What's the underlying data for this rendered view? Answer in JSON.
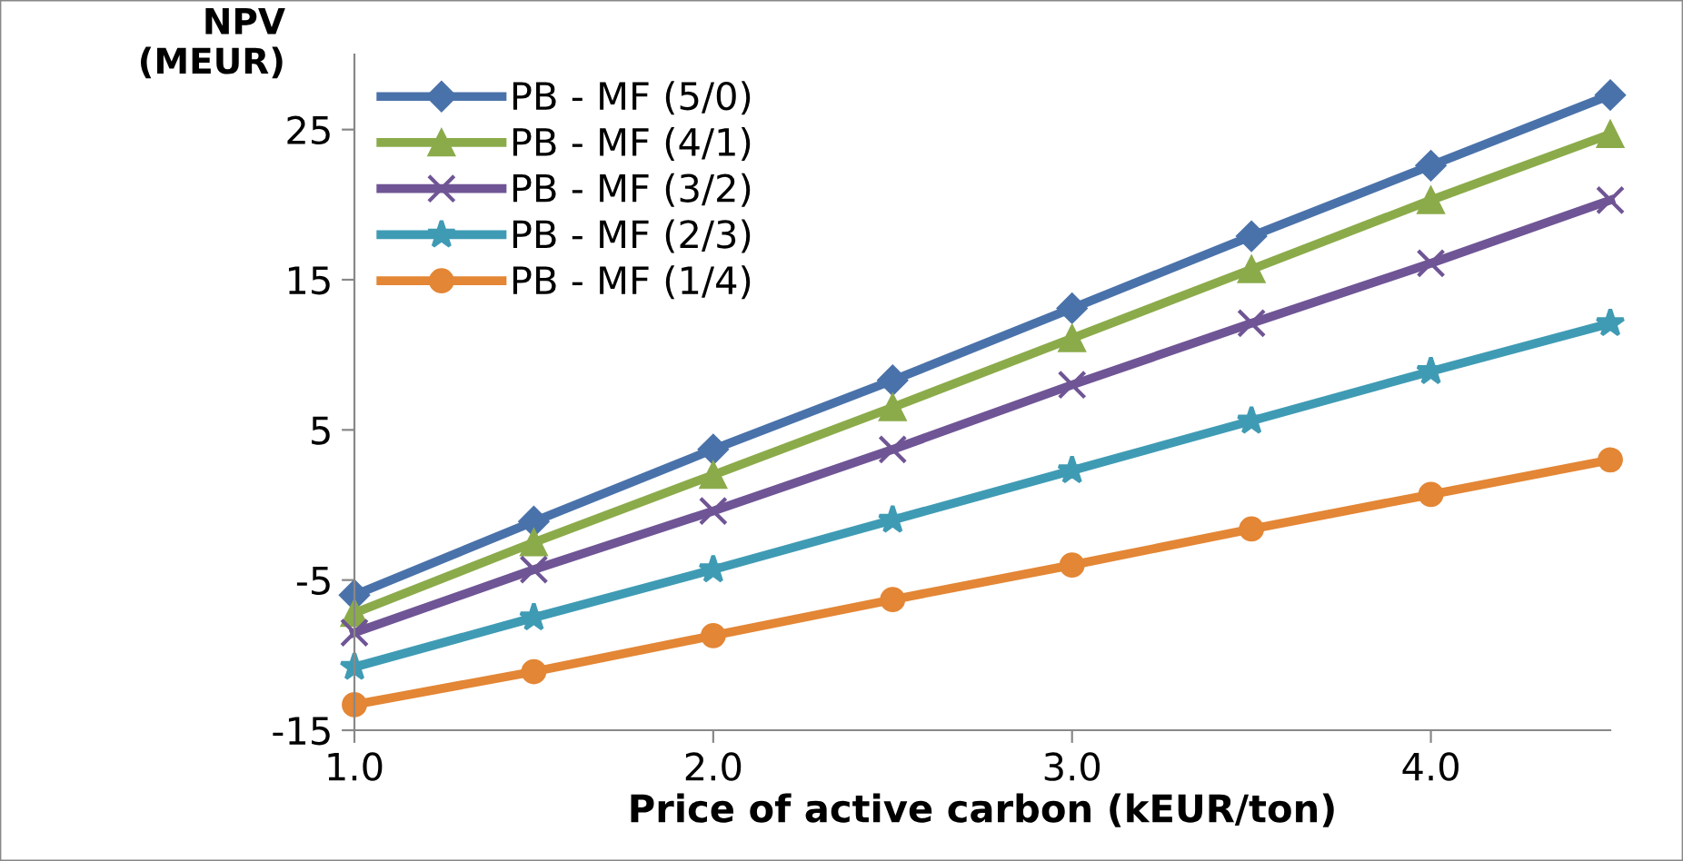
{
  "chart_data": {
    "type": "line",
    "xlabel": "Price of active carbon (kEUR/ton)",
    "ylabel": "NPV\n(MEUR)",
    "x": [
      1.0,
      1.5,
      2.0,
      2.5,
      3.0,
      3.5,
      4.0,
      4.5
    ],
    "xlim": [
      1.0,
      4.5
    ],
    "xticks": [
      {
        "value": 1.0,
        "label": "1.0"
      },
      {
        "value": 2.0,
        "label": "2.0"
      },
      {
        "value": 3.0,
        "label": "3.0"
      },
      {
        "value": 4.0,
        "label": "4.0"
      }
    ],
    "ylim": [
      -15,
      30
    ],
    "yticks": [
      -15,
      -5,
      5,
      15,
      25
    ],
    "grid": false,
    "legend": "top left",
    "series": [
      {
        "name": "PB - MF (5/0)",
        "color": "#4a72aa",
        "marker": "diamond",
        "values": [
          -6.0,
          -1.1,
          3.7,
          8.3,
          13.1,
          17.9,
          22.6,
          27.3
        ]
      },
      {
        "name": "PB - MF (4/1)",
        "color": "#8bab4a",
        "marker": "triangle",
        "values": [
          -7.2,
          -2.5,
          2.0,
          6.5,
          11.1,
          15.7,
          20.3,
          24.7
        ]
      },
      {
        "name": "PB - MF (3/2)",
        "color": "#6f5595",
        "marker": "cross",
        "values": [
          -8.5,
          -4.3,
          -0.4,
          3.7,
          8.0,
          12.1,
          16.1,
          20.3
        ]
      },
      {
        "name": "PB - MF (2/3)",
        "color": "#3f9bb4",
        "marker": "star",
        "values": [
          -10.8,
          -7.5,
          -4.3,
          -1.0,
          2.3,
          5.6,
          8.9,
          12.1
        ]
      },
      {
        "name": "PB - MF (1/4)",
        "color": "#e38635",
        "marker": "circle",
        "values": [
          -13.3,
          -11.1,
          -8.7,
          -6.3,
          -4.0,
          -1.6,
          0.7,
          3.0
        ]
      }
    ]
  }
}
